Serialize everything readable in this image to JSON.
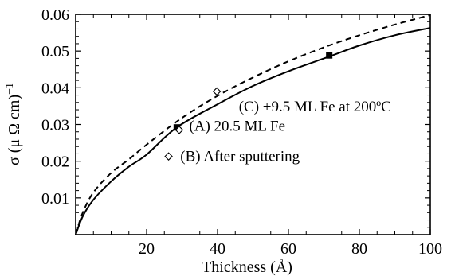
{
  "chart_data": {
    "type": "line",
    "xlabel": "Thickness (Å)",
    "ylabel": "σ (μ Ω cm)",
    "ylabel_exponent": "−1",
    "xlim": [
      0,
      100
    ],
    "ylim": [
      0,
      0.06
    ],
    "xticks": [
      20,
      40,
      60,
      80,
      100
    ],
    "yticks": [
      0.01,
      0.02,
      0.03,
      0.04,
      0.05,
      0.06
    ],
    "xtick_labels": [
      "20",
      "40",
      "60",
      "80",
      "100"
    ],
    "ytick_labels": [
      "0.01",
      "0.02",
      "0.03",
      "0.04",
      "0.05",
      "0.06"
    ],
    "grid": false,
    "series": [
      {
        "style": "solid",
        "x": [
          0,
          2,
          5,
          10,
          15,
          20,
          28.5,
          40,
          50,
          60,
          71.5,
          80,
          90,
          100
        ],
        "y": [
          0,
          0.005,
          0.0095,
          0.0145,
          0.0185,
          0.0218,
          0.0292,
          0.0355,
          0.0405,
          0.0445,
          0.0485,
          0.0515,
          0.0543,
          0.0563
        ]
      },
      {
        "style": "dashed",
        "x": [
          0,
          2,
          5,
          10,
          15,
          20,
          30,
          40,
          50,
          60,
          70,
          80,
          90,
          100
        ],
        "y": [
          0,
          0.006,
          0.0115,
          0.0168,
          0.0205,
          0.0245,
          0.0318,
          0.0378,
          0.0428,
          0.0472,
          0.051,
          0.0543,
          0.0572,
          0.0598
        ]
      }
    ],
    "markers": [
      {
        "shape": "filled-square",
        "x": 28.5,
        "y": 0.0292
      },
      {
        "shape": "filled-square",
        "x": 71.5,
        "y": 0.0488
      },
      {
        "shape": "open-diamond",
        "x": 29.2,
        "y": 0.0285
      },
      {
        "shape": "open-diamond",
        "x": 26.2,
        "y": 0.0213
      },
      {
        "shape": "open-diamond",
        "x": 39.8,
        "y": 0.039
      }
    ],
    "annotations": [
      {
        "text": "(C) +9.5 ML Fe at 200ºC",
        "x": 46,
        "y": 0.0336
      },
      {
        "text": "(A) 20.5 ML Fe",
        "x": 32,
        "y": 0.0283
      },
      {
        "text": "(B) After sputtering",
        "x": 29.5,
        "y": 0.02
      }
    ]
  }
}
